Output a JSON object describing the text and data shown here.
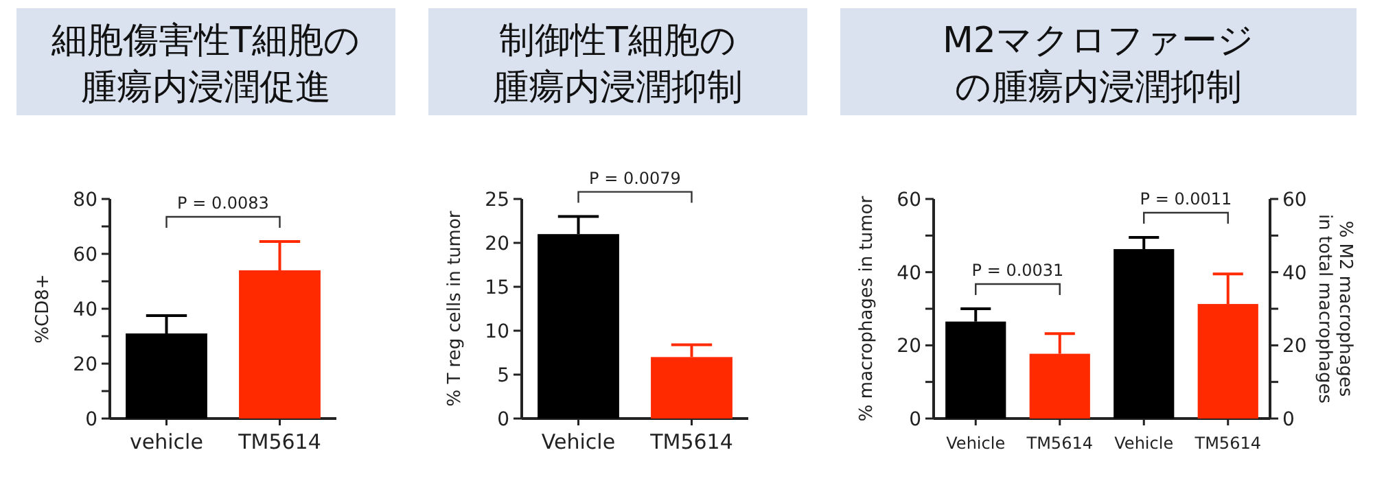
{
  "chart_data": [
    {
      "type": "bar",
      "title": "細胞傷害性T細胞の",
      "subtitle": "腫瘍内浸潤促進",
      "categories": [
        "vehicle",
        "TM5614"
      ],
      "ylabel": "%CD8+",
      "series": [
        {
          "colors": [
            "#000000",
            "#ff2a00"
          ],
          "values": [
            31,
            54
          ],
          "errors": [
            6.5,
            10.5
          ]
        }
      ],
      "ylim": [
        0,
        80
      ],
      "yticks": [
        0,
        {
          "value": 10,
          "label": null
        },
        20,
        {
          "value": 30,
          "label": null
        },
        40,
        {
          "value": 50,
          "label": null
        },
        60,
        {
          "value": 70,
          "label": null
        },
        80
      ],
      "annotations": [
        "P = 0.0083"
      ]
    },
    {
      "type": "bar",
      "title": "制御性T細胞の",
      "subtitle": "腫瘍内浸潤抑制",
      "categories": [
        "Vehicle",
        "TM5614"
      ],
      "ylabel": "% T reg cells in tumor",
      "series": [
        {
          "colors": [
            "#000000",
            "#ff2a00"
          ],
          "values": [
            21,
            7
          ],
          "errors": [
            2,
            1.4
          ]
        }
      ],
      "ylim": [
        0,
        25
      ],
      "yticks": [
        0,
        5,
        10,
        15,
        20,
        25
      ],
      "annotations": [
        "P = 0.0079"
      ]
    },
    {
      "type": "bar",
      "title": "M2マクロファージ",
      "subtitle": "の腫瘍内浸潤抑制",
      "categories": [
        "Vehicle",
        "TM5614",
        "Vehicle",
        "TM5614"
      ],
      "ylabel": "% macrophages in tumor",
      "y2label": "% M2 macrophages\nin total macrophages",
      "series": [
        {
          "colors": [
            "#000000",
            "#ff2a00",
            null,
            null
          ],
          "values": [
            26.5,
            17.7,
            null,
            null
          ],
          "errors": [
            3.5,
            5.5,
            null,
            null
          ]
        },
        {
          "axis": "y2",
          "colors": [
            null,
            null,
            "#000000",
            "#ff2a00"
          ],
          "values": [
            null,
            null,
            46.3,
            31.3
          ],
          "errors": [
            null,
            null,
            3.2,
            8.2
          ]
        }
      ],
      "ylim": [
        0,
        60
      ],
      "yticks": [
        0,
        {
          "value": 10,
          "label": null
        },
        20,
        {
          "value": 30,
          "label": null
        },
        40,
        {
          "value": 50,
          "label": null
        },
        60
      ],
      "y2lim": [
        0,
        60
      ],
      "y2ticks": [
        0,
        {
          "value": 10,
          "label": null
        },
        20,
        {
          "value": 30,
          "label": null
        },
        40,
        {
          "value": 50,
          "label": null
        },
        60
      ],
      "annotations": [
        "P = 0.0031",
        "P = 0.0011"
      ]
    }
  ]
}
